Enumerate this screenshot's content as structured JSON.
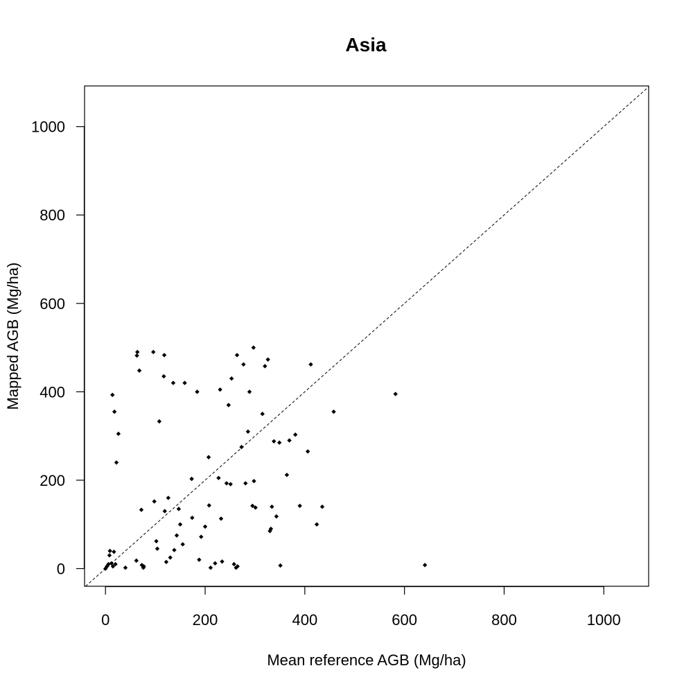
{
  "chart_data": {
    "type": "scatter",
    "title": "Asia",
    "xlabel": "Mean reference AGB (Mg/ha)",
    "ylabel": "Mapped AGB (Mg/ha)",
    "xlim": [
      -42,
      1090
    ],
    "ylim": [
      -40,
      1092
    ],
    "x_ticks": [
      0,
      200,
      400,
      600,
      800,
      1000
    ],
    "y_ticks": [
      0,
      200,
      400,
      600,
      800,
      1000
    ],
    "reference_line": "1:1 dashed",
    "grid": false,
    "legend": "none",
    "points": [
      [
        0,
        0
      ],
      [
        3,
        5
      ],
      [
        6,
        10
      ],
      [
        8,
        30
      ],
      [
        9,
        40
      ],
      [
        12,
        12
      ],
      [
        15,
        5
      ],
      [
        17,
        38
      ],
      [
        20,
        10
      ],
      [
        14,
        393
      ],
      [
        18,
        355
      ],
      [
        22,
        240
      ],
      [
        26,
        305
      ],
      [
        40,
        2
      ],
      [
        62,
        18
      ],
      [
        63,
        482
      ],
      [
        64,
        490
      ],
      [
        68,
        448
      ],
      [
        72,
        133
      ],
      [
        73,
        8
      ],
      [
        76,
        2
      ],
      [
        77,
        5
      ],
      [
        96,
        490
      ],
      [
        98,
        152
      ],
      [
        102,
        62
      ],
      [
        104,
        45
      ],
      [
        108,
        333
      ],
      [
        117,
        435
      ],
      [
        118,
        483
      ],
      [
        119,
        130
      ],
      [
        122,
        15
      ],
      [
        126,
        160
      ],
      [
        130,
        25
      ],
      [
        136,
        420
      ],
      [
        138,
        42
      ],
      [
        143,
        75
      ],
      [
        147,
        135
      ],
      [
        150,
        100
      ],
      [
        155,
        55
      ],
      [
        159,
        420
      ],
      [
        173,
        203
      ],
      [
        174,
        115
      ],
      [
        184,
        400
      ],
      [
        188,
        20
      ],
      [
        192,
        72
      ],
      [
        200,
        95
      ],
      [
        207,
        252
      ],
      [
        208,
        143
      ],
      [
        211,
        2
      ],
      [
        220,
        12
      ],
      [
        227,
        205
      ],
      [
        230,
        405
      ],
      [
        232,
        113
      ],
      [
        234,
        16
      ],
      [
        243,
        193
      ],
      [
        247,
        370
      ],
      [
        251,
        191
      ],
      [
        253,
        430
      ],
      [
        258,
        10
      ],
      [
        262,
        2
      ],
      [
        264,
        483
      ],
      [
        265,
        5
      ],
      [
        273,
        275
      ],
      [
        277,
        462
      ],
      [
        281,
        193
      ],
      [
        286,
        310
      ],
      [
        289,
        400
      ],
      [
        295,
        142
      ],
      [
        297,
        500
      ],
      [
        298,
        198
      ],
      [
        301,
        138
      ],
      [
        315,
        350
      ],
      [
        320,
        458
      ],
      [
        326,
        473
      ],
      [
        330,
        85
      ],
      [
        332,
        90
      ],
      [
        334,
        140
      ],
      [
        338,
        288
      ],
      [
        343,
        118
      ],
      [
        349,
        285
      ],
      [
        351,
        7
      ],
      [
        364,
        212
      ],
      [
        369,
        290
      ],
      [
        381,
        303
      ],
      [
        390,
        142
      ],
      [
        406,
        265
      ],
      [
        412,
        462
      ],
      [
        424,
        100
      ],
      [
        435,
        140
      ],
      [
        458,
        355
      ],
      [
        582,
        395
      ],
      [
        641,
        8
      ]
    ]
  }
}
